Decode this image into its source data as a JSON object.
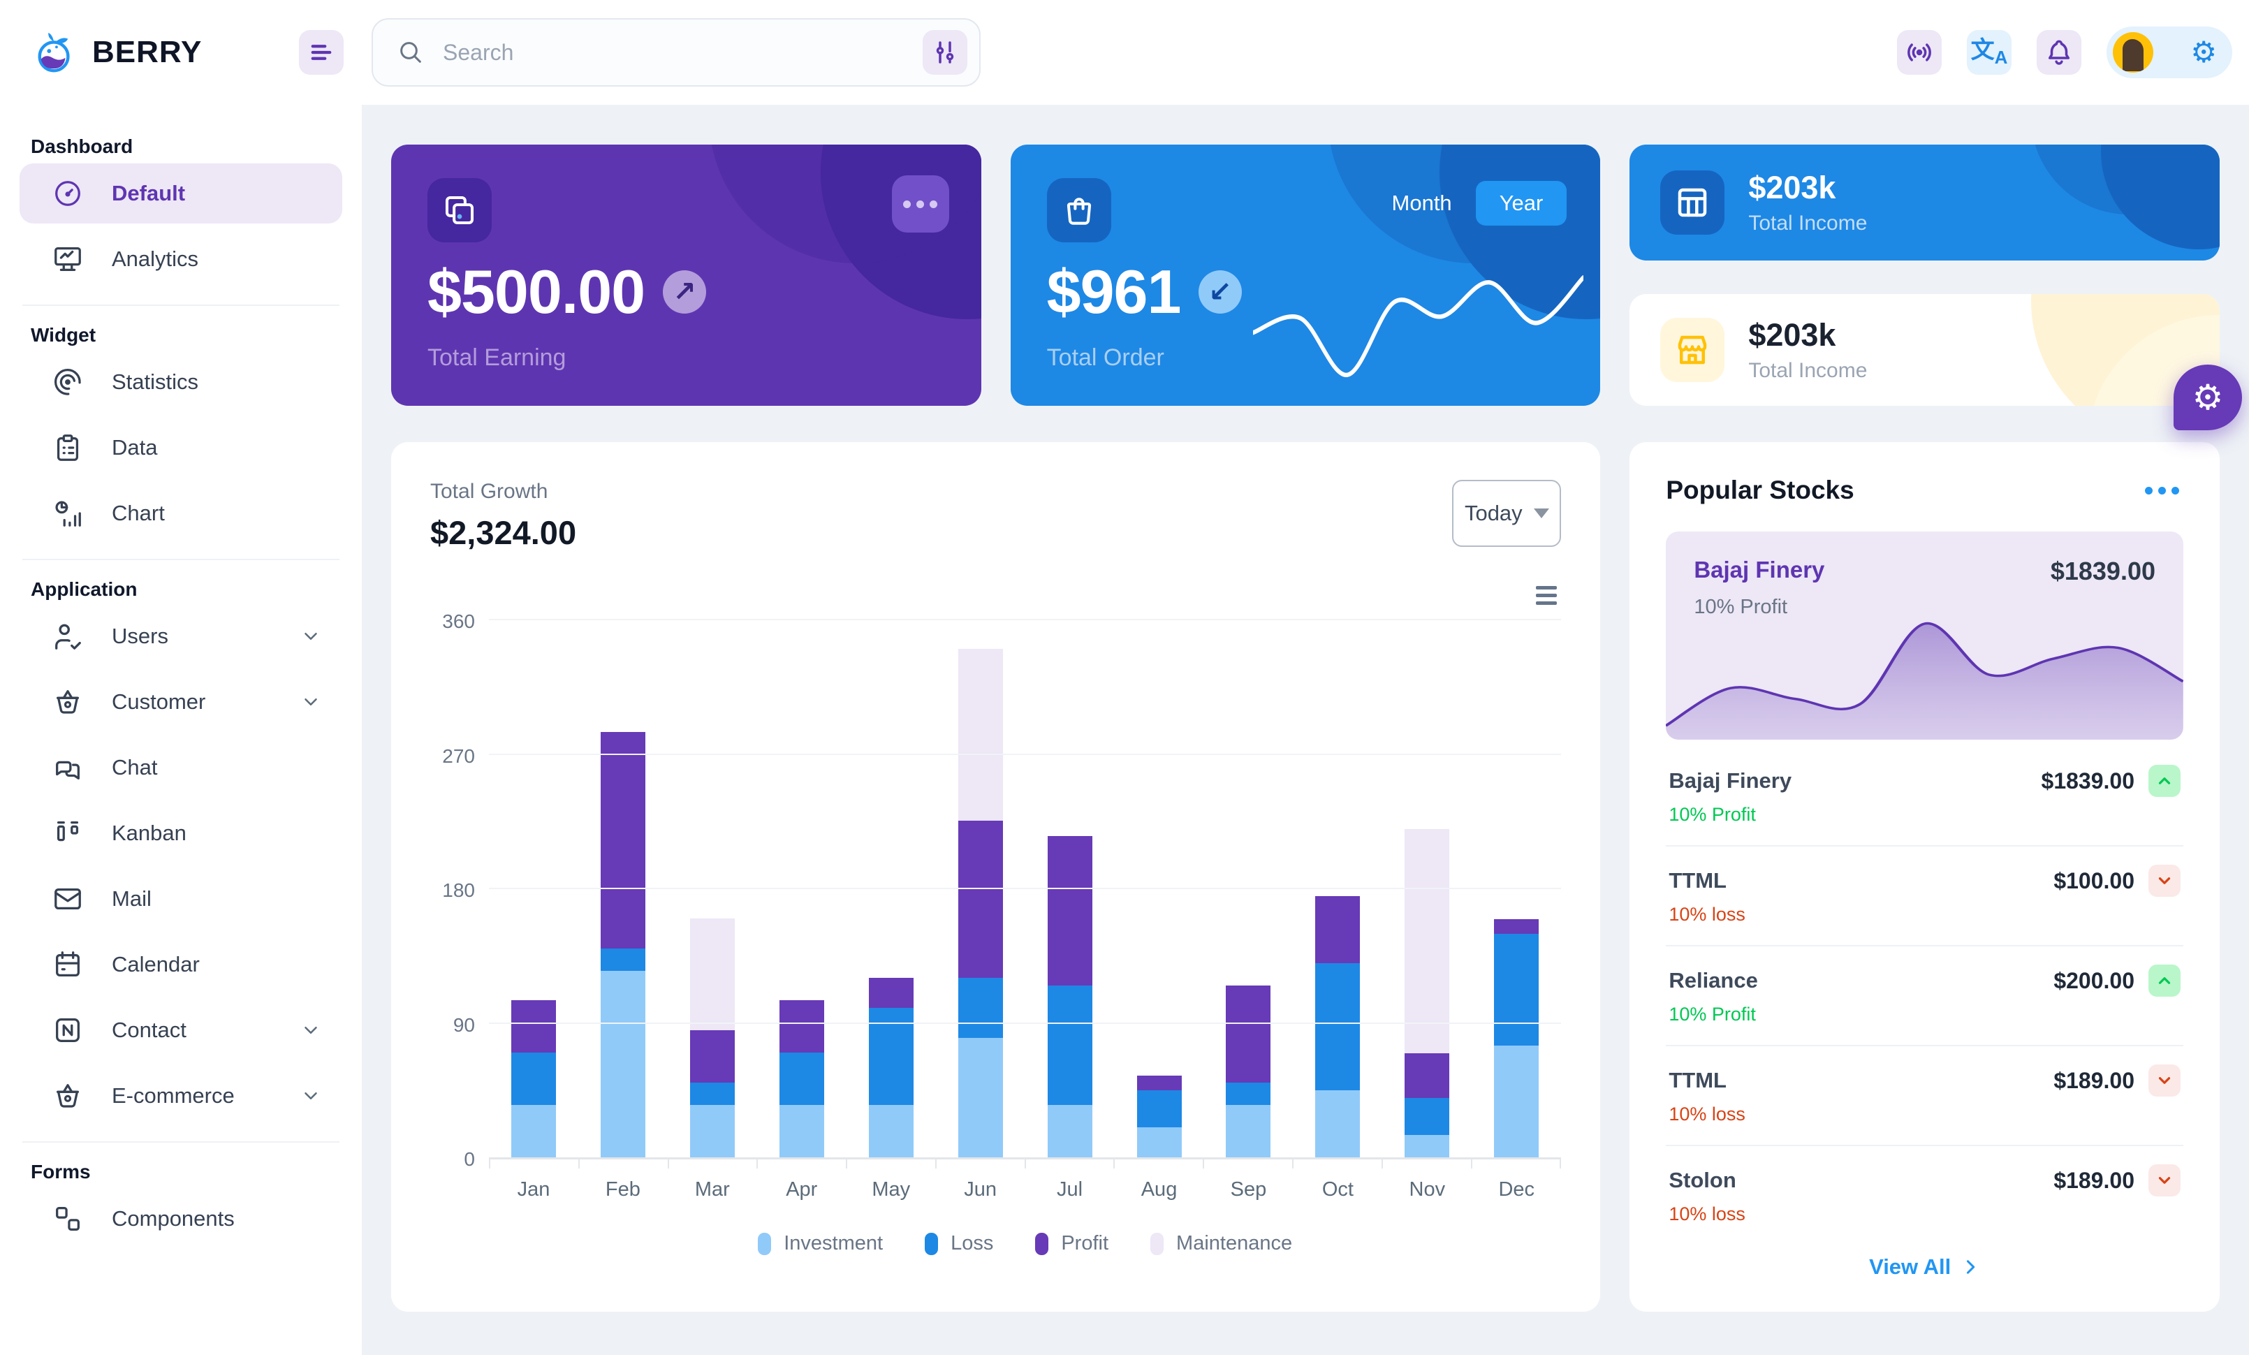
{
  "colors": {
    "page_bg": "#EEF2F6",
    "surface": "#FFFFFF",
    "purple_main": "#5E35B1",
    "purple_dark": "#4527A0",
    "purple_light": "#EDE7F6",
    "purple_200": "#B39DDB",
    "blue_main": "#1E88E5",
    "blue_dark": "#1565C0",
    "blue_bright": "#2196F3",
    "blue_200": "#90CAF9",
    "blue_light": "#E3F2FD",
    "success": "#00C853",
    "success_light": "#B9F6CA",
    "danger": "#D84315",
    "danger_light": "#FBE9E7",
    "warning": "#FFC107",
    "warning_light": "#FFF8E1",
    "text_dark": "#121926",
    "text_gray": "#697586"
  },
  "header": {
    "brand": "BERRY",
    "search_placeholder": "Search"
  },
  "sidebar": {
    "sections": [
      {
        "label": "Dashboard",
        "divider": true,
        "items": [
          {
            "label": "Default",
            "icon": "gauge-icon",
            "active": true
          },
          {
            "label": "Analytics",
            "icon": "device-analytics-icon"
          }
        ]
      },
      {
        "label": "Widget",
        "divider": true,
        "items": [
          {
            "label": "Statistics",
            "icon": "chart-arcs-icon"
          },
          {
            "label": "Data",
            "icon": "clipboard-icon"
          },
          {
            "label": "Chart",
            "icon": "chart-infographic-icon"
          }
        ]
      },
      {
        "label": "Application",
        "divider": true,
        "items": [
          {
            "label": "Users",
            "icon": "user-check-icon",
            "chevron": true
          },
          {
            "label": "Customer",
            "icon": "basket-icon",
            "chevron": true
          },
          {
            "label": "Chat",
            "icon": "message-icon"
          },
          {
            "label": "Kanban",
            "icon": "layout-kanban-icon"
          },
          {
            "label": "Mail",
            "icon": "mail-icon"
          },
          {
            "label": "Calendar",
            "icon": "calendar-icon"
          },
          {
            "label": "Contact",
            "icon": "nfc-icon",
            "chevron": true
          },
          {
            "label": "E-commerce",
            "icon": "basket-icon",
            "chevron": true
          }
        ]
      },
      {
        "label": "Forms",
        "divider": false,
        "items": [
          {
            "label": "Components",
            "icon": "components-icon",
            "partial": true
          }
        ]
      }
    ]
  },
  "cards": {
    "earning": {
      "amount": "$500.00",
      "label": "Total Earning"
    },
    "order": {
      "amount": "$961",
      "label": "Total Order",
      "month_label": "Month",
      "year_label": "Year",
      "selected": "Year"
    },
    "income_blue": {
      "amount": "$203k",
      "label": "Total Income"
    },
    "income_light": {
      "amount": "$203k",
      "label": "Total Income"
    }
  },
  "growth": {
    "label": "Total Growth",
    "amount": "$2,324.00",
    "period": "Today"
  },
  "stocks": {
    "title": "Popular Stocks",
    "featured": {
      "name": "Bajaj Finery",
      "price": "$1839.00",
      "sub": "10% Profit"
    },
    "items": [
      {
        "name": "Bajaj Finery",
        "price": "$1839.00",
        "sub": "10% Profit",
        "trend": "up"
      },
      {
        "name": "TTML",
        "price": "$100.00",
        "sub": "10% loss",
        "trend": "down"
      },
      {
        "name": "Reliance",
        "price": "$200.00",
        "sub": "10% Profit",
        "trend": "up"
      },
      {
        "name": "TTML",
        "price": "$189.00",
        "sub": "10% loss",
        "trend": "down"
      },
      {
        "name": "Stolon",
        "price": "$189.00",
        "sub": "10% loss",
        "trend": "down"
      }
    ],
    "view_all": "View All"
  },
  "chart_data": [
    {
      "type": "bar",
      "stacked": true,
      "title": "Total Growth",
      "categories": [
        "Jan",
        "Feb",
        "Mar",
        "Apr",
        "May",
        "Jun",
        "Jul",
        "Aug",
        "Sep",
        "Oct",
        "Nov",
        "Dec"
      ],
      "series": [
        {
          "name": "Investment",
          "color": "#90CAF9",
          "values": [
            35,
            125,
            35,
            35,
            35,
            80,
            35,
            20,
            35,
            45,
            15,
            75
          ]
        },
        {
          "name": "Loss",
          "color": "#1E88E5",
          "values": [
            35,
            15,
            15,
            35,
            65,
            40,
            80,
            25,
            15,
            85,
            25,
            75
          ]
        },
        {
          "name": "Profit",
          "color": "#673AB7",
          "values": [
            35,
            145,
            35,
            35,
            20,
            105,
            100,
            10,
            65,
            45,
            30,
            10
          ]
        },
        {
          "name": "Maintenance",
          "color": "#EDE7F6",
          "values": [
            0,
            0,
            75,
            0,
            0,
            115,
            0,
            0,
            0,
            0,
            150,
            0
          ]
        }
      ],
      "ylim": [
        0,
        360
      ],
      "yticks": [
        0,
        90,
        180,
        270,
        360
      ],
      "grid": true,
      "legend_position": "bottom"
    },
    {
      "type": "line",
      "title": "Total Order sparkline",
      "x": [
        1,
        2,
        3,
        4,
        5,
        6,
        7,
        8
      ],
      "values": [
        35,
        44,
        9,
        54,
        45,
        66,
        41,
        69
      ],
      "color": "#FFFFFF"
    },
    {
      "type": "area",
      "title": "Bajaj Finery price trend",
      "x": [
        1,
        2,
        3,
        4,
        5,
        6,
        7,
        8,
        9
      ],
      "values": [
        2,
        30,
        22,
        18,
        78,
        40,
        52,
        60,
        35
      ],
      "color": "#5E35B1"
    }
  ]
}
